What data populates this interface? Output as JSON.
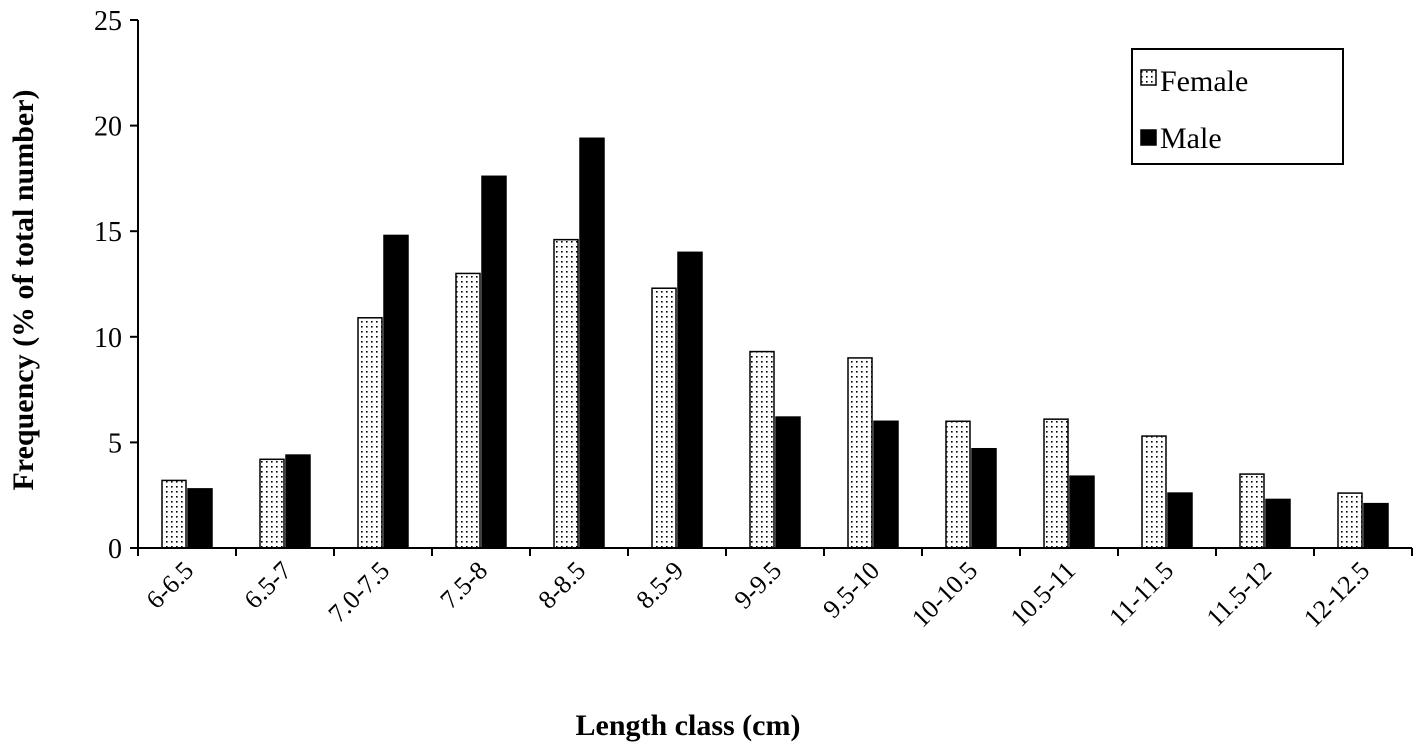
{
  "chart_data": {
    "type": "bar",
    "xlabel": "Length class (cm)",
    "ylabel": "Frequency (% of total number)",
    "ylim": [
      0,
      25
    ],
    "yticks": [
      0,
      5,
      10,
      15,
      20,
      25
    ],
    "grid": false,
    "legend_position": "top-right",
    "categories": [
      "6-6.5",
      "6.5-7",
      "7.0-7.5",
      "7.5-8",
      "8-8.5",
      "8.5-9",
      "9-9.5",
      "9.5-10",
      "10-10.5",
      "10.5-11",
      "11-11.5",
      "11.5-12",
      "12-12.5"
    ],
    "series": [
      {
        "name": "Female",
        "pattern": "dotted",
        "color": "#ffffff",
        "values": [
          3.2,
          4.2,
          10.9,
          13.0,
          14.6,
          12.3,
          9.3,
          9.0,
          6.0,
          6.1,
          5.3,
          3.5,
          2.6
        ]
      },
      {
        "name": "Male",
        "pattern": "solid",
        "color": "#000000",
        "values": [
          2.8,
          4.4,
          14.8,
          17.6,
          19.4,
          14.0,
          6.2,
          6.0,
          4.7,
          3.4,
          2.6,
          2.3,
          2.1
        ]
      }
    ]
  }
}
